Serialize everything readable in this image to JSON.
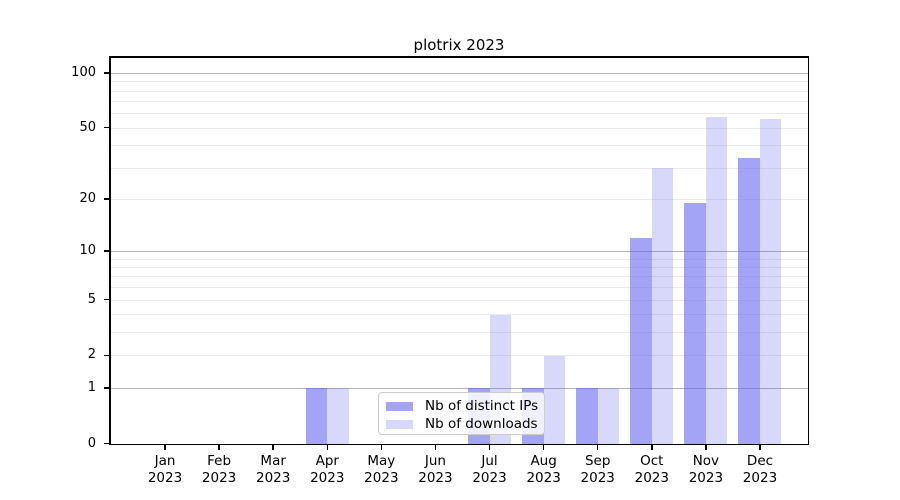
{
  "title": "plotrix 2023",
  "chart_data": {
    "type": "bar",
    "title": "plotrix 2023",
    "categories": [
      "Jan 2023",
      "Feb 2023",
      "Mar 2023",
      "Apr 2023",
      "May 2023",
      "Jun 2023",
      "Jul 2023",
      "Aug 2023",
      "Sep 2023",
      "Oct 2023",
      "Nov 2023",
      "Dec 2023"
    ],
    "series": [
      {
        "name": "Nb of distinct IPs",
        "color": "rgba(90,90,240,0.55)",
        "values": [
          0,
          0,
          0,
          1,
          0,
          0,
          1,
          1,
          1,
          12,
          19,
          34
        ]
      },
      {
        "name": "Nb of downloads",
        "color": "rgba(90,90,240,0.24)",
        "values": [
          0,
          0,
          0,
          1,
          0,
          0,
          4,
          2,
          1,
          30,
          58,
          56
        ]
      }
    ],
    "xlabel": "",
    "ylabel": "",
    "yscale": "log1p",
    "ylim": [
      0,
      122
    ],
    "yticks": [
      0,
      1,
      2,
      5,
      10,
      20,
      50,
      100
    ],
    "gridlines": {
      "minor": [
        2,
        3,
        4,
        5,
        6,
        7,
        8,
        9,
        20,
        30,
        40,
        50,
        60,
        70,
        80,
        90
      ],
      "major": [
        1,
        10,
        100
      ]
    },
    "grid": true,
    "legend_position": "lower-left-of-center"
  },
  "legend": {
    "items": [
      {
        "label": "Nb of distinct IPs"
      },
      {
        "label": "Nb of downloads"
      }
    ]
  },
  "colors": {
    "bar_distinct_ips": "rgba(90,90,240,0.55)",
    "bar_downloads": "rgba(90,90,240,0.24)",
    "grid_minor": "#eaeaea",
    "grid_major": "#b5b5b5",
    "axis": "#000000",
    "legend_border": "#cccccc",
    "background": "#ffffff"
  }
}
